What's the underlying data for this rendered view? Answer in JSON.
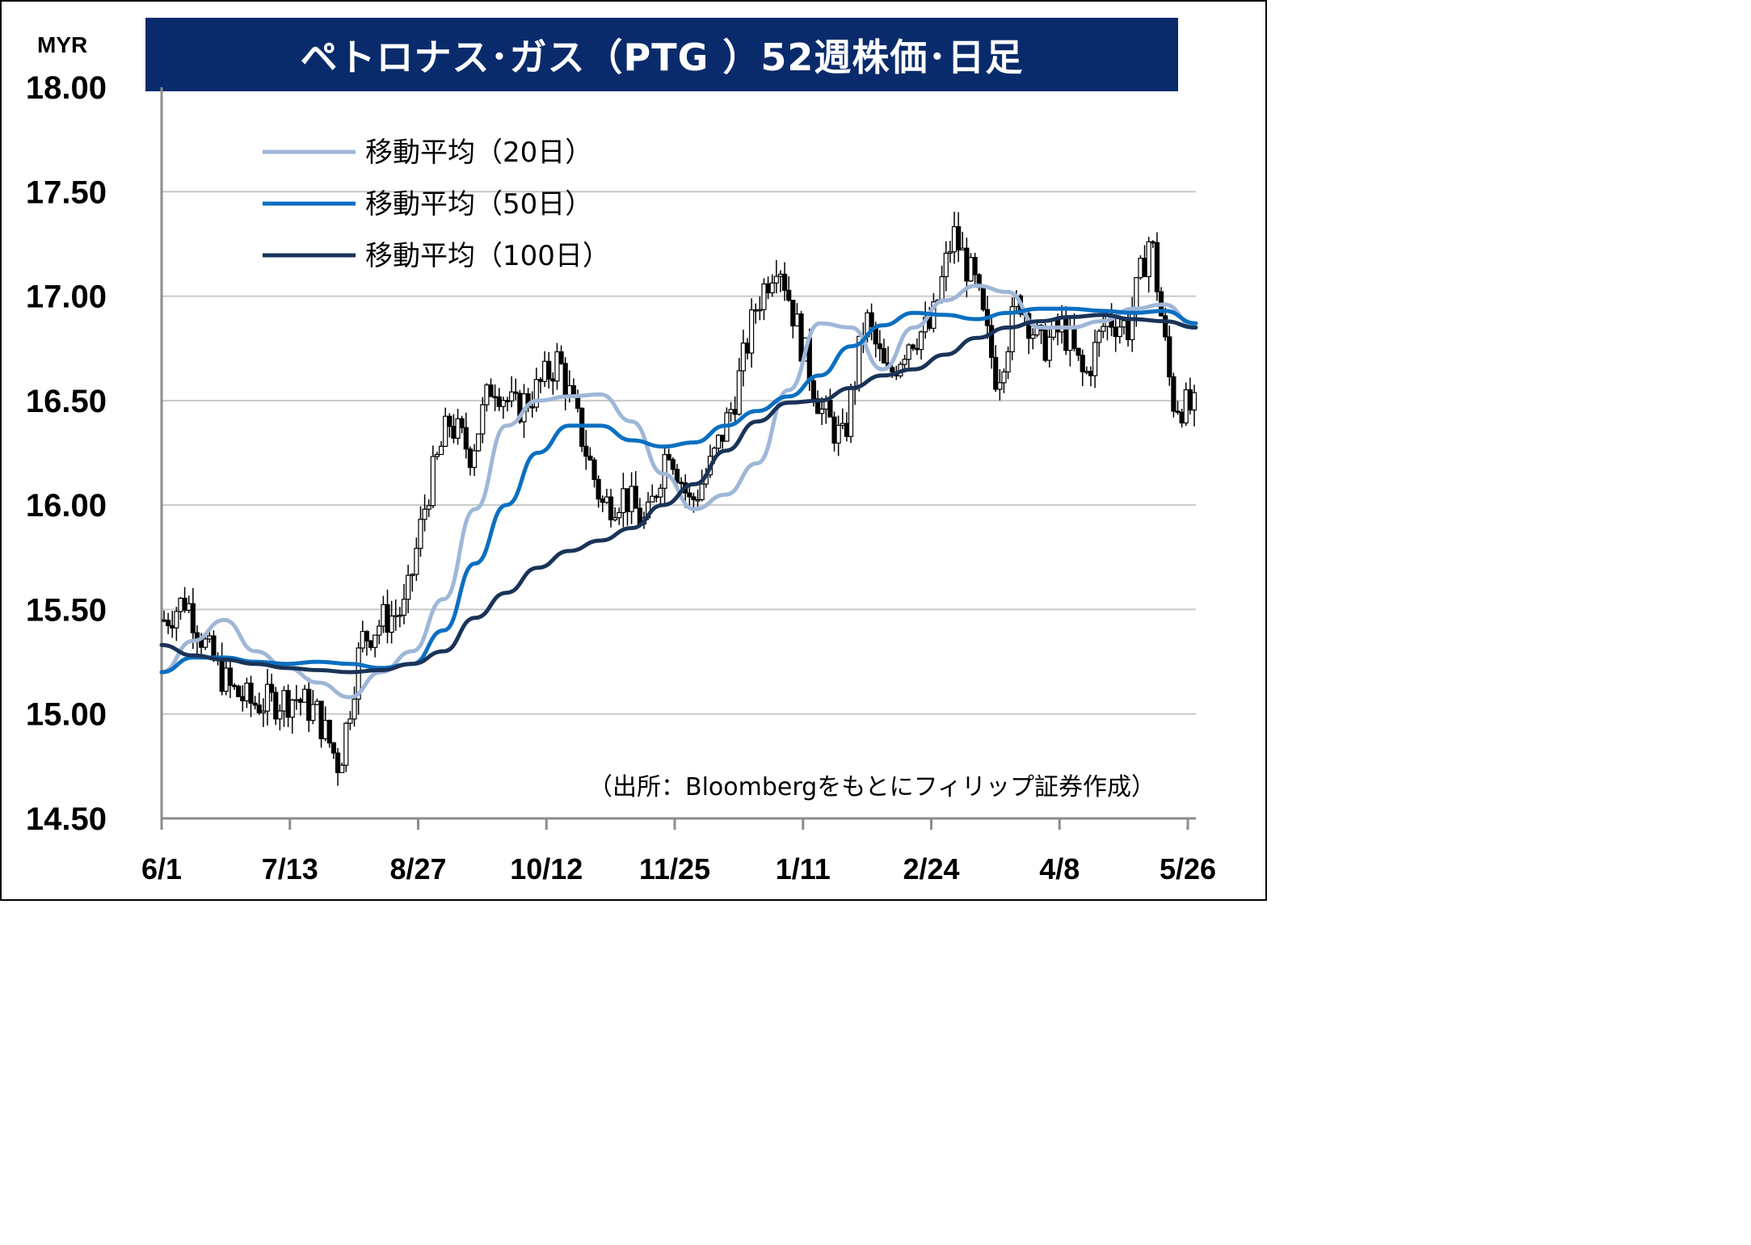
{
  "chart_data": {
    "type": "line",
    "title": "ペトロナス･ガス（PTG ）52週株価･日足",
    "unit": "MYR",
    "ylim": [
      14.5,
      18.0
    ],
    "y_ticks": [
      "18.00",
      "17.50",
      "17.00",
      "16.50",
      "16.00",
      "15.50",
      "15.00",
      "14.50"
    ],
    "x_ticks": [
      "6/1",
      "7/13",
      "8/27",
      "10/12",
      "11/25",
      "1/11",
      "2/24",
      "4/8",
      "5/26"
    ],
    "grid": true,
    "legend_position": "top-left",
    "source": "（出所：Bloombergをもとにフィリップ証券作成）",
    "series": [
      {
        "name": "移動平均（20日）",
        "color": "#9fb7d8",
        "values": [
          15.2,
          15.35,
          15.45,
          15.3,
          15.22,
          15.15,
          15.08,
          15.2,
          15.3,
          15.55,
          15.98,
          16.38,
          16.5,
          16.52,
          16.53,
          16.4,
          16.15,
          15.98,
          16.05,
          16.2,
          16.55,
          16.87,
          16.85,
          16.65,
          16.85,
          16.98,
          17.05,
          17.02,
          16.85,
          16.85,
          16.88,
          16.94,
          16.96,
          16.85
        ]
      },
      {
        "name": "移動平均（50日）",
        "color": "#0b6fc1",
        "values": [
          15.2,
          15.27,
          15.27,
          15.25,
          15.24,
          15.25,
          15.24,
          15.22,
          15.24,
          15.4,
          15.72,
          16.0,
          16.25,
          16.38,
          16.38,
          16.31,
          16.28,
          16.3,
          16.38,
          16.45,
          16.52,
          16.62,
          16.76,
          16.86,
          16.92,
          16.91,
          16.89,
          16.92,
          16.94,
          16.94,
          16.93,
          16.92,
          16.93,
          16.87
        ]
      },
      {
        "name": "移動平均（100日）",
        "color": "#1a3358",
        "values": [
          15.33,
          15.28,
          15.26,
          15.24,
          15.22,
          15.21,
          15.2,
          15.21,
          15.24,
          15.3,
          15.46,
          15.58,
          15.7,
          15.78,
          15.83,
          15.89,
          16.0,
          16.1,
          16.26,
          16.4,
          16.49,
          16.5,
          16.56,
          16.62,
          16.65,
          16.72,
          16.8,
          16.85,
          16.88,
          16.9,
          16.91,
          16.89,
          16.88,
          16.85
        ]
      },
      {
        "name": "株価（日足）",
        "color": "#000000",
        "close": [
          15.45,
          15.55,
          15.3,
          15.12,
          15.05,
          15.06,
          15.08,
          15.0,
          14.75,
          15.35,
          15.45,
          15.5,
          16.05,
          16.4,
          16.25,
          16.6,
          16.45,
          16.55,
          16.7,
          16.35,
          16.0,
          16.05,
          15.9,
          16.3,
          16.0,
          16.2,
          16.5,
          16.95,
          17.2,
          16.8,
          16.45,
          16.3,
          16.9,
          16.6,
          16.8,
          16.85,
          17.3,
          17.05,
          16.6,
          17.0,
          16.75,
          16.85,
          16.6,
          16.9,
          16.85,
          17.3,
          16.5,
          16.45
        ]
      }
    ]
  },
  "legend": {
    "ma20": "移動平均（20日）",
    "ma50": "移動平均（50日）",
    "ma100": "移動平均（100日）"
  }
}
